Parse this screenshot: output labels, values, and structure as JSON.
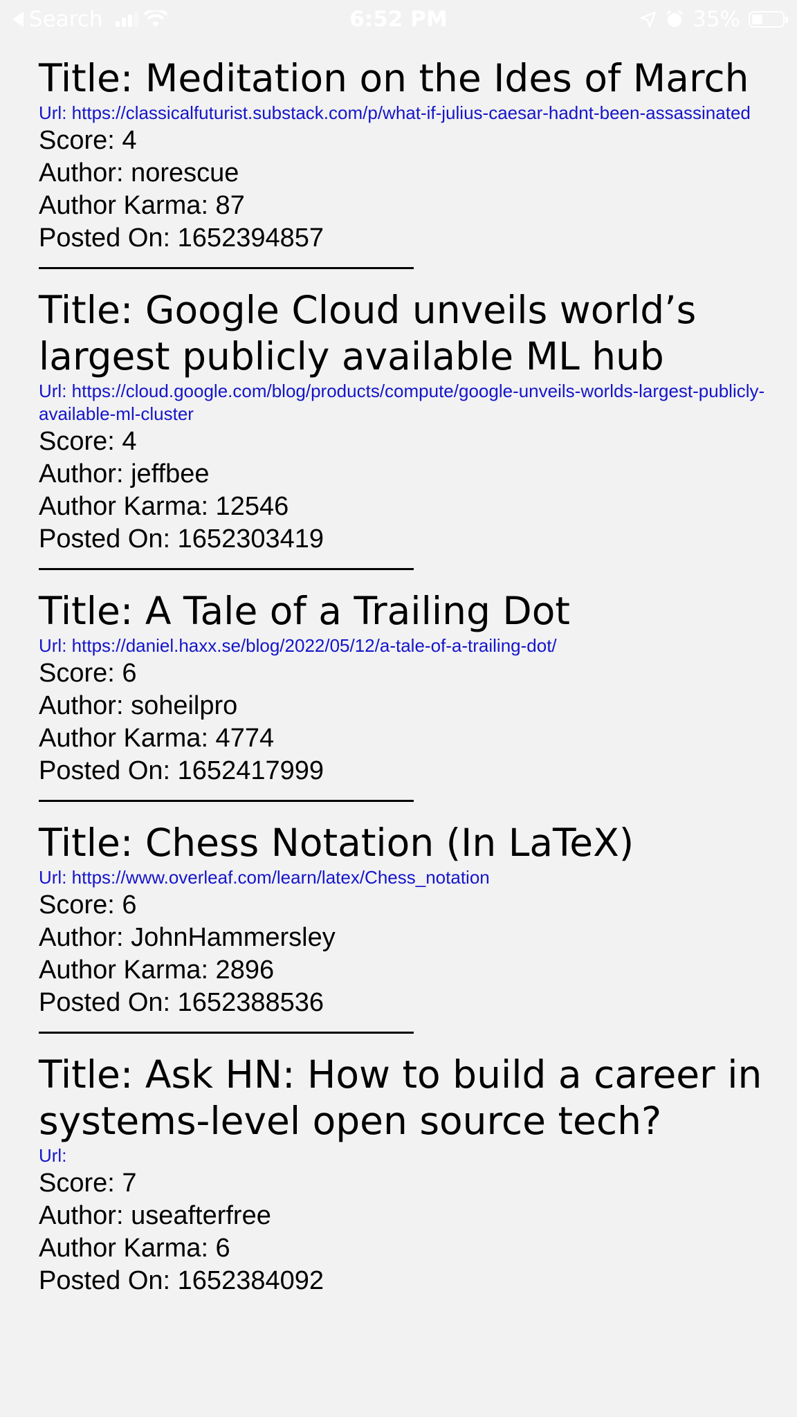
{
  "status_bar": {
    "back_label": "Search",
    "time": "6:52 PM",
    "battery": "35%",
    "battery_level": 0.35
  },
  "stories": [
    {
      "title": "Title: Meditation on the Ides of March",
      "url": "Url: https://classicalfuturist.substack.com/p/what-if-julius-caesar-hadnt-been-assassinated",
      "score": "Score: 4",
      "author": "Author: norescue",
      "karma": "Author Karma: 87",
      "posted": "Posted On: 1652394857"
    },
    {
      "title": "Title: Google Cloud unveils world’s largest publicly available ML hub",
      "url": "Url: https://cloud.google.com/blog/products/compute/google-unveils-worlds-largest-publicly-available-ml-cluster",
      "score": "Score: 4",
      "author": "Author: jeffbee",
      "karma": "Author Karma: 12546",
      "posted": "Posted On: 1652303419"
    },
    {
      "title": "Title: A Tale of a Trailing Dot",
      "url": "Url: https://daniel.haxx.se/blog/2022/05/12/a-tale-of-a-trailing-dot/",
      "score": "Score: 6",
      "author": "Author: soheilpro",
      "karma": "Author Karma: 4774",
      "posted": "Posted On: 1652417999"
    },
    {
      "title": "Title: Chess Notation (In LaTeX)",
      "url": "Url: https://www.overleaf.com/learn/latex/Chess_notation",
      "score": "Score: 6",
      "author": "Author: JohnHammersley",
      "karma": "Author Karma: 2896",
      "posted": "Posted On: 1652388536"
    },
    {
      "title": "Title: Ask HN: How to build a career in systems-level open source tech?",
      "url": "Url:",
      "score": "Score: 7",
      "author": "Author: useafterfree",
      "karma": "Author Karma: 6",
      "posted": "Posted On: 1652384092"
    }
  ]
}
